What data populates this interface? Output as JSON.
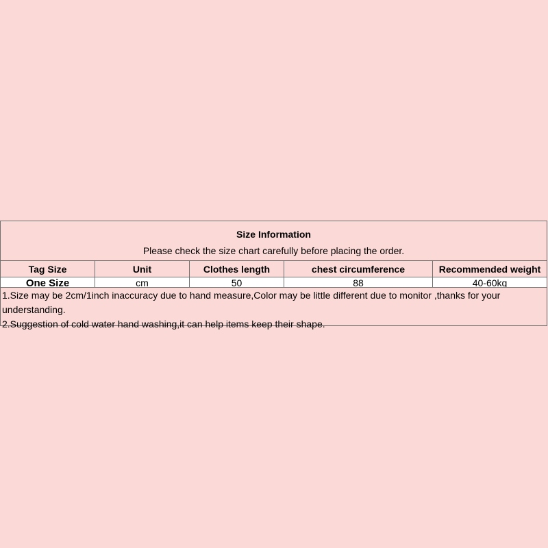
{
  "title": "Size Information",
  "subtitle": "Please check the size chart carefully before placing the order.",
  "columns": [
    "Tag Size",
    "Unit",
    "Clothes length",
    "chest circumference",
    "Recommended weight"
  ],
  "rows": [
    [
      "One Size",
      "cm",
      "50",
      "88",
      "40-60kg"
    ]
  ],
  "notes": [
    "1.Size may be 2cm/1inch inaccuracy due to hand measure,Color may be little different due to monitor ,thanks for your understanding.",
    "2.Suggestion of cold water hand washing,it can help items keep their shape."
  ],
  "colors": {
    "background": "#fbd9d6",
    "border": "#6f6f6f",
    "data_row": "#ffffff"
  }
}
